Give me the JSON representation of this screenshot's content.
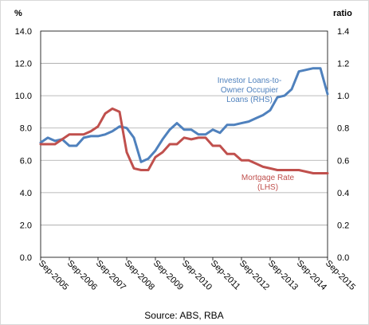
{
  "chart_data": {
    "type": "line",
    "y_left": {
      "title": "%",
      "ylim": [
        0,
        14
      ],
      "ticks": [
        "0.0",
        "2.0",
        "4.0",
        "6.0",
        "8.0",
        "10.0",
        "12.0",
        "14.0"
      ]
    },
    "y_right": {
      "title": "ratio",
      "ylim": [
        0,
        1.4
      ],
      "ticks": [
        "0.0",
        "0.2",
        "0.4",
        "0.6",
        "0.8",
        "1.0",
        "1.2",
        "1.4"
      ]
    },
    "x_tick_labels": [
      "Sep-2005",
      "Sep-2006",
      "Sep-2007",
      "Sep-2008",
      "Sep-2009",
      "Sep-2010",
      "Sep-2011",
      "Sep-2012",
      "Sep-2013",
      "Sep-2014",
      "Sep-2015"
    ],
    "x_period": "quarterly",
    "x_range": [
      "Sep-2005",
      "Sep-2015"
    ],
    "grid": "horizontal",
    "series": [
      {
        "name": "Investor Loans-to-Owner Occupier Loans (RHS)",
        "axis": "right",
        "color": "#4f81bd",
        "label_lines": [
          "Investor Loans-to-",
          "Owner Occupier",
          "Loans (RHS)"
        ],
        "values": [
          0.71,
          0.74,
          0.72,
          0.73,
          0.69,
          0.69,
          0.74,
          0.75,
          0.75,
          0.76,
          0.78,
          0.81,
          0.8,
          0.74,
          0.59,
          0.61,
          0.66,
          0.73,
          0.79,
          0.83,
          0.79,
          0.79,
          0.76,
          0.76,
          0.79,
          0.77,
          0.82,
          0.82,
          0.83,
          0.84,
          0.86,
          0.88,
          0.91,
          0.99,
          1.0,
          1.04,
          1.15,
          1.16,
          1.17,
          1.17,
          1.01
        ]
      },
      {
        "name": "Mortgage Rate (LHS)",
        "axis": "left",
        "color": "#c0504d",
        "label_lines": [
          "Mortgage Rate",
          "(LHS)"
        ],
        "values": [
          7.0,
          7.0,
          7.0,
          7.3,
          7.6,
          7.6,
          7.6,
          7.8,
          8.1,
          8.9,
          9.2,
          9.0,
          6.5,
          5.5,
          5.4,
          5.4,
          6.2,
          6.5,
          7.0,
          7.0,
          7.4,
          7.3,
          7.4,
          7.4,
          6.9,
          6.9,
          6.4,
          6.4,
          6.0,
          6.0,
          5.8,
          5.6,
          5.5,
          5.4,
          5.4,
          5.4,
          5.4,
          5.3,
          5.2,
          5.2,
          5.2
        ]
      }
    ]
  },
  "source": "Source: ABS, RBA"
}
